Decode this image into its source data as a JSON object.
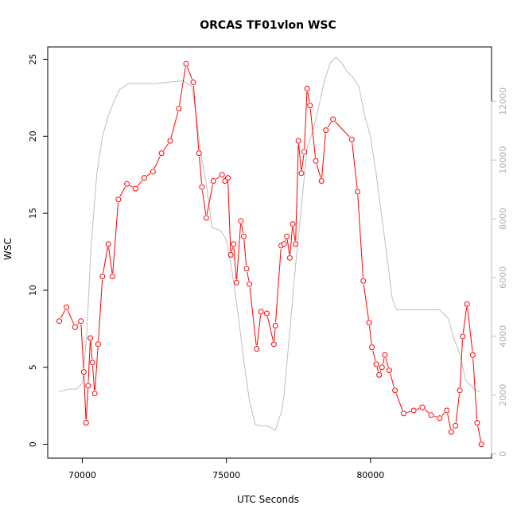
{
  "chart_data": {
    "type": "line",
    "title": "ORCAS TF01vlon WSC",
    "xlabel": "UTC Seconds",
    "ylabel": "WSC",
    "xlim": [
      68800,
      84200
    ],
    "ylim": [
      -0.9,
      25.8
    ],
    "x_ticks": [
      70000,
      75000,
      80000
    ],
    "y_ticks": [
      0,
      5,
      10,
      15,
      20,
      25
    ],
    "grid": false,
    "legend": "none",
    "colors": {
      "wsc": "#ff0000",
      "secondary": "#bebebe"
    },
    "series": [
      {
        "axis": "left",
        "style": "line+points",
        "x": [
          69200,
          69450,
          69750,
          69950,
          70050,
          70130,
          70200,
          70280,
          70350,
          70430,
          70550,
          70700,
          70900,
          71050,
          71250,
          71550,
          71850,
          72150,
          72450,
          72750,
          73050,
          73350,
          73600,
          73850,
          74050,
          74150,
          74300,
          74550,
          74850,
          74950,
          75050,
          75150,
          75250,
          75350,
          75500,
          75600,
          75700,
          75800,
          76050,
          76200,
          76400,
          76650,
          76700,
          76900,
          77000,
          77100,
          77200,
          77300,
          77400,
          77500,
          77600,
          77700,
          77800,
          77900,
          78100,
          78300,
          78450,
          78700,
          79350,
          79550,
          79750,
          79950,
          80050,
          80200,
          80300,
          80400,
          80500,
          80650,
          80850,
          81150,
          81500,
          81800,
          82100,
          82400,
          82650,
          82800,
          82950,
          83100,
          83200,
          83350,
          83550,
          83700,
          83850
        ],
        "y": [
          8.0,
          8.9,
          7.6,
          8.0,
          4.7,
          1.4,
          3.8,
          6.9,
          5.3,
          3.3,
          6.5,
          10.9,
          13.0,
          10.9,
          15.9,
          16.9,
          16.6,
          17.3,
          17.7,
          18.9,
          19.7,
          21.8,
          24.7,
          23.5,
          18.9,
          16.7,
          14.7,
          17.1,
          17.5,
          17.1,
          17.3,
          12.3,
          13.0,
          10.5,
          14.5,
          13.5,
          11.4,
          10.4,
          6.2,
          8.6,
          8.5,
          6.5,
          7.7,
          12.9,
          13.0,
          13.5,
          12.1,
          14.3,
          13.0,
          19.7,
          17.6,
          19.0,
          23.1,
          22.0,
          18.4,
          17.1,
          20.4,
          21.1,
          19.8,
          16.4,
          10.6,
          7.9,
          6.3,
          5.2,
          4.5,
          5.0,
          5.8,
          4.8,
          3.5,
          2.0,
          2.2,
          2.4,
          1.9,
          1.7,
          2.2,
          0.8,
          1.2,
          3.5,
          7.0,
          9.1,
          5.8,
          1.4,
          0.0
        ]
      },
      {
        "axis": "right",
        "style": "line",
        "x": [
          69200,
          69500,
          69800,
          70000,
          70150,
          70300,
          70500,
          70700,
          70900,
          71100,
          71300,
          71600,
          72000,
          72500,
          73000,
          73500,
          73800,
          74000,
          74100,
          74300,
          74500,
          74800,
          75000,
          75200,
          75400,
          75600,
          75800,
          76000,
          76200,
          76400,
          76600,
          76700,
          76900,
          77000,
          77200,
          77400,
          77600,
          77800,
          78000,
          78200,
          78400,
          78600,
          78800,
          79000,
          79200,
          79400,
          79600,
          79800,
          80000,
          80200,
          80400,
          80600,
          80750,
          80900,
          81200,
          81600,
          82000,
          82400,
          82700,
          82900,
          83100,
          83300,
          83600,
          83800
        ],
        "y": [
          2100,
          2200,
          2200,
          2400,
          4000,
          7000,
          9500,
          10800,
          11500,
          12000,
          12400,
          12600,
          12600,
          12600,
          12650,
          12700,
          12500,
          11200,
          10300,
          9200,
          7700,
          7600,
          7300,
          6200,
          4800,
          3200,
          1800,
          1000,
          950,
          950,
          850,
          800,
          1400,
          2000,
          4200,
          6400,
          8400,
          10400,
          11000,
          11800,
          12700,
          13300,
          13500,
          13300,
          13000,
          12800,
          12500,
          11500,
          10800,
          9500,
          8000,
          6500,
          5300,
          4900,
          4900,
          4900,
          4900,
          4900,
          4600,
          3900,
          3400,
          2500,
          2200,
          2100
        ]
      }
    ],
    "secondary_axis": {
      "position": "right",
      "ylim": [
        -150,
        13850
      ],
      "ticks": [
        0,
        2000,
        4000,
        6000,
        8000,
        10000,
        12000
      ]
    }
  }
}
